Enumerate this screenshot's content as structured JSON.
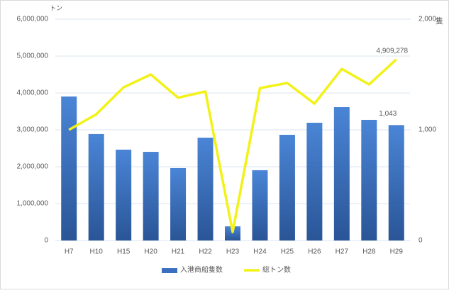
{
  "chart_data": {
    "type": "bar",
    "y_label": "トン",
    "y2_label": "隻",
    "categories": [
      "H7",
      "H10",
      "H15",
      "H20",
      "H21",
      "H22",
      "H23",
      "H24",
      "H25",
      "H26",
      "H27",
      "H28",
      "H29"
    ],
    "series": [
      {
        "name": "入港商船隻数",
        "type": "bar",
        "axis": "y2",
        "color": "#3a6fbf",
        "values": [
          1301,
          962,
          821,
          801,
          654,
          929,
          128,
          635,
          955,
          1064,
          1205,
          1090,
          1043
        ],
        "value_labels": [
          null,
          null,
          null,
          null,
          null,
          null,
          null,
          null,
          null,
          null,
          null,
          null,
          "1,043"
        ]
      },
      {
        "name": "総トン数",
        "type": "line",
        "color": "#f2f218",
        "values": [
          3000000,
          3420000,
          4150000,
          4500000,
          3870000,
          4040000,
          230000,
          4130000,
          4270000,
          3710000,
          4650000,
          4230000,
          4909278
        ],
        "value_labels": [
          null,
          null,
          null,
          null,
          null,
          null,
          null,
          null,
          null,
          null,
          null,
          null,
          "4,909,278"
        ]
      }
    ],
    "ylim": [
      0,
      6000000
    ],
    "yticks": [
      0,
      {
        "value": 1000000,
        "label": "1,000,000"
      },
      {
        "value": 2000000,
        "label": "2,000,000"
      },
      {
        "value": 3000000,
        "label": "3,000,000"
      },
      {
        "value": 4000000,
        "label": "4,000,000"
      },
      {
        "value": 5000000,
        "label": "5,000,000"
      },
      {
        "value": 6000000,
        "label": "6,000,000"
      }
    ],
    "y2lim": [
      0,
      2000
    ],
    "y2ticks": [
      0,
      {
        "value": 1000,
        "label": "1,000"
      },
      {
        "value": 2000,
        "label": "2,000"
      }
    ],
    "grid": true
  }
}
